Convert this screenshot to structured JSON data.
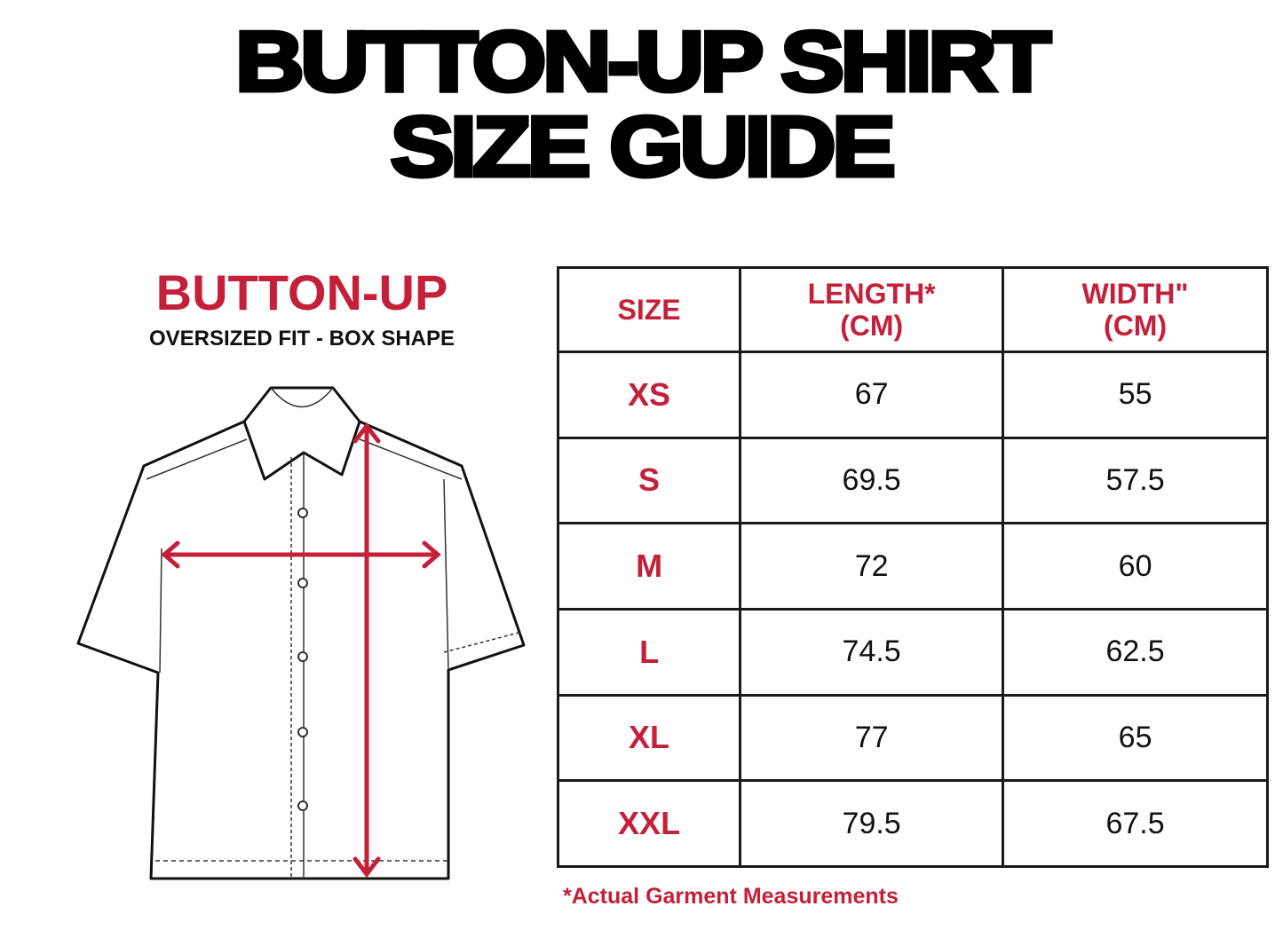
{
  "title": {
    "line1": "BUTTON-UP SHIRT",
    "line2": "SIZE GUIDE"
  },
  "product": {
    "name": "BUTTON-UP",
    "fit": "OVERSIZED FIT - BOX SHAPE"
  },
  "colors": {
    "accent": "#c4203a",
    "text": "#111111"
  },
  "table": {
    "headers": [
      {
        "line1": "SIZE",
        "line2": ""
      },
      {
        "line1": "LENGTH*",
        "line2": "(CM)"
      },
      {
        "line1": "WIDTH\"",
        "line2": "(CM)"
      }
    ],
    "rows": [
      {
        "size": "XS",
        "length": "67",
        "width": "55"
      },
      {
        "size": "S",
        "length": "69.5",
        "width": "57.5"
      },
      {
        "size": "M",
        "length": "72",
        "width": "60"
      },
      {
        "size": "L",
        "length": "74.5",
        "width": "62.5"
      },
      {
        "size": "XL",
        "length": "77",
        "width": "65"
      },
      {
        "size": "XXL",
        "length": "79.5",
        "width": "67.5"
      }
    ]
  },
  "footnote": "*Actual Garment Measurements"
}
